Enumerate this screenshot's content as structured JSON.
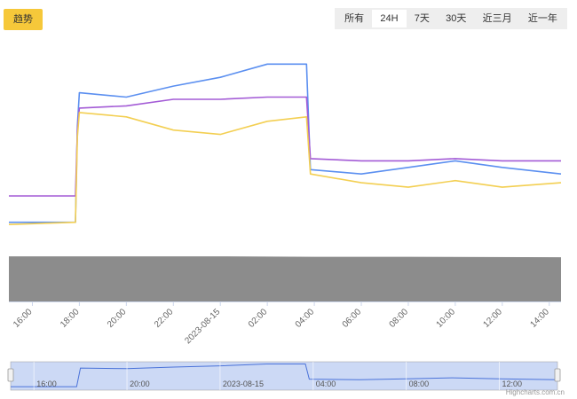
{
  "header": {
    "trend_label": "趋势",
    "range_options": [
      "所有",
      "24H",
      "7天",
      "30天",
      "近三月",
      "近一年"
    ],
    "active_range": "24H"
  },
  "credit": "Highcharts.com.cn",
  "colors": {
    "blue": "#5b8ff0",
    "purple": "#a35bd6",
    "yellow": "#f3cf52",
    "volume": "#8c8c8c",
    "navigator_fill": "#ccd9f5",
    "navigator_line": "#4a72d9"
  },
  "chart_data": {
    "type": "line",
    "x_ticks": [
      "16:00",
      "18:00",
      "20:00",
      "22:00",
      "2023-08-15",
      "02:00",
      "04:00",
      "06:00",
      "08:00",
      "10:00",
      "12:00",
      "14:00"
    ],
    "navigator_ticks": [
      "16:00",
      "20:00",
      "2023-08-15",
      "04:00",
      "08:00",
      "12:00"
    ],
    "series": [
      {
        "color": "blue",
        "points": [
          [
            "15:00",
            196
          ],
          [
            "17:50",
            196
          ],
          [
            "17:55",
            240
          ],
          [
            "18:00",
            255
          ],
          [
            "20:00",
            253
          ],
          [
            "22:00",
            258
          ],
          [
            "00:00",
            262
          ],
          [
            "02:00",
            268
          ],
          [
            "03:40",
            268
          ],
          [
            "03:50",
            220
          ],
          [
            "06:00",
            218
          ],
          [
            "08:00",
            221
          ],
          [
            "10:00",
            224
          ],
          [
            "12:00",
            221
          ],
          [
            "14:30",
            218
          ]
        ]
      },
      {
        "color": "purple",
        "points": [
          [
            "15:00",
            208
          ],
          [
            "17:50",
            208
          ],
          [
            "17:55",
            238
          ],
          [
            "18:00",
            248
          ],
          [
            "20:00",
            249
          ],
          [
            "22:00",
            252
          ],
          [
            "00:00",
            252
          ],
          [
            "02:00",
            253
          ],
          [
            "03:40",
            253
          ],
          [
            "03:50",
            225
          ],
          [
            "06:00",
            224
          ],
          [
            "08:00",
            224
          ],
          [
            "10:00",
            225
          ],
          [
            "12:00",
            224
          ],
          [
            "14:30",
            224
          ]
        ]
      },
      {
        "color": "yellow",
        "points": [
          [
            "15:00",
            195
          ],
          [
            "17:50",
            196
          ],
          [
            "17:55",
            235
          ],
          [
            "18:00",
            246
          ],
          [
            "20:00",
            244
          ],
          [
            "22:00",
            238
          ],
          [
            "00:00",
            236
          ],
          [
            "02:00",
            242
          ],
          [
            "03:40",
            244
          ],
          [
            "03:50",
            218
          ],
          [
            "06:00",
            214
          ],
          [
            "08:00",
            212
          ],
          [
            "10:00",
            215
          ],
          [
            "12:00",
            212
          ],
          [
            "14:30",
            214
          ]
        ]
      }
    ],
    "volume_series": {
      "color": "volume",
      "points": [
        [
          "15:00",
          100
        ],
        [
          "20:00",
          100
        ],
        [
          "00:00",
          100
        ],
        [
          "04:00",
          99
        ],
        [
          "08:00",
          99
        ],
        [
          "14:30",
          98
        ]
      ]
    },
    "navigator_series": [
      [
        "15:00",
        196
      ],
      [
        "17:50",
        196
      ],
      [
        "18:00",
        255
      ],
      [
        "20:00",
        253
      ],
      [
        "22:00",
        258
      ],
      [
        "00:00",
        262
      ],
      [
        "02:00",
        268
      ],
      [
        "03:40",
        268
      ],
      [
        "03:50",
        220
      ],
      [
        "06:00",
        218
      ],
      [
        "08:00",
        221
      ],
      [
        "10:00",
        224
      ],
      [
        "12:00",
        221
      ],
      [
        "14:30",
        218
      ]
    ],
    "y_range": [
      185,
      275
    ],
    "volume_y_range": [
      0,
      110
    ]
  }
}
